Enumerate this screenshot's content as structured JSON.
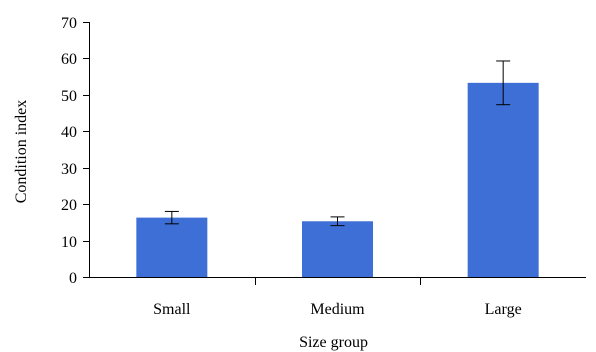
{
  "chart_data": {
    "type": "bar",
    "title": "",
    "xlabel": "Size group",
    "ylabel": "Condition index",
    "categories": [
      "Small",
      "Medium",
      "Large"
    ],
    "values": [
      16.3,
      15.3,
      53.3
    ],
    "errors": [
      1.7,
      1.2,
      6.0
    ],
    "ylim": [
      0,
      70
    ],
    "yticks": [
      0,
      10,
      20,
      30,
      40,
      50,
      60,
      70
    ],
    "grid": false,
    "bar_color": "#3e6fd6"
  }
}
